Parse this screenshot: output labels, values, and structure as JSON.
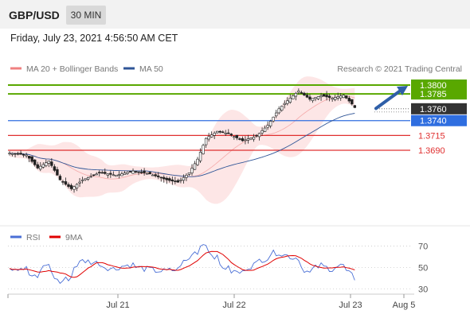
{
  "header": {
    "pair": "GBP/USD",
    "timeframe": "30 MIN",
    "timestamp": "Friday, July 23, 2021 4:56:50 AM CET"
  },
  "legend": {
    "ma20": "MA 20 + Bollinger Bands",
    "ma50": "MA 50",
    "credit": "Research © 2021 Trading Central",
    "ma20_color": "#f08080",
    "ma50_color": "#2f5597"
  },
  "rsi_legend": {
    "rsi": "RSI",
    "ma9": "9MA",
    "rsi_color": "#4a6fd6",
    "ma9_color": "#e00000"
  },
  "colors": {
    "green": "#59a800",
    "blue": "#2f6ee0",
    "red": "#e03030",
    "dark": "#333333",
    "bollinger_fill": "#fde2e2"
  },
  "chart_data": [
    {
      "type": "candlestick",
      "title": "GBP/USD 30 MIN",
      "x_ticks": [
        "Jul 21",
        "Jul 22",
        "Jul 23",
        "Aug 5"
      ],
      "levels": [
        {
          "value": 1.38,
          "label": "1.3800",
          "kind": "resistance",
          "color": "#59a800"
        },
        {
          "value": 1.3785,
          "label": "1.3785",
          "kind": "resistance",
          "color": "#59a800"
        },
        {
          "value": 1.376,
          "label": "1.3760",
          "kind": "last price",
          "color": "#333333"
        },
        {
          "value": 1.374,
          "label": "1.3740",
          "kind": "pivot",
          "color": "#2f6ee0"
        },
        {
          "value": 1.3715,
          "label": "1.3715",
          "kind": "support",
          "color": "#e03030"
        },
        {
          "value": 1.369,
          "label": "1.3690",
          "kind": "support",
          "color": "#e03030"
        }
      ],
      "price_path": [
        [
          0,
          1.3685
        ],
        [
          6,
          1.3682
        ],
        [
          10,
          1.366
        ],
        [
          14,
          1.3672
        ],
        [
          18,
          1.364
        ],
        [
          22,
          1.3625
        ],
        [
          26,
          1.364
        ],
        [
          32,
          1.3652
        ],
        [
          38,
          1.3648
        ],
        [
          44,
          1.3655
        ],
        [
          50,
          1.365
        ],
        [
          56,
          1.364
        ],
        [
          60,
          1.3636
        ],
        [
          64,
          1.3652
        ],
        [
          67,
          1.3675
        ],
        [
          70,
          1.371
        ],
        [
          74,
          1.3722
        ],
        [
          78,
          1.3718
        ],
        [
          83,
          1.3706
        ],
        [
          88,
          1.3714
        ],
        [
          92,
          1.3732
        ],
        [
          96,
          1.376
        ],
        [
          100,
          1.3778
        ],
        [
          103,
          1.379
        ],
        [
          107,
          1.3776
        ],
        [
          111,
          1.3782
        ],
        [
          115,
          1.3778
        ],
        [
          119,
          1.3783
        ],
        [
          122,
          1.3768
        ],
        [
          123,
          1.3762
        ]
      ],
      "x_range": [
        0,
        130
      ],
      "projection": {
        "from": 1.3762,
        "to": 1.38
      }
    },
    {
      "type": "line",
      "title": "RSI",
      "series": [
        {
          "name": "RSI"
        },
        {
          "name": "9MA"
        }
      ],
      "y_ticks": [
        30,
        50,
        70
      ],
      "ylim": [
        25,
        80
      ],
      "x_ticks": [
        "Jul 21",
        "Jul 22",
        "Jul 23",
        "Aug 5"
      ]
    }
  ]
}
